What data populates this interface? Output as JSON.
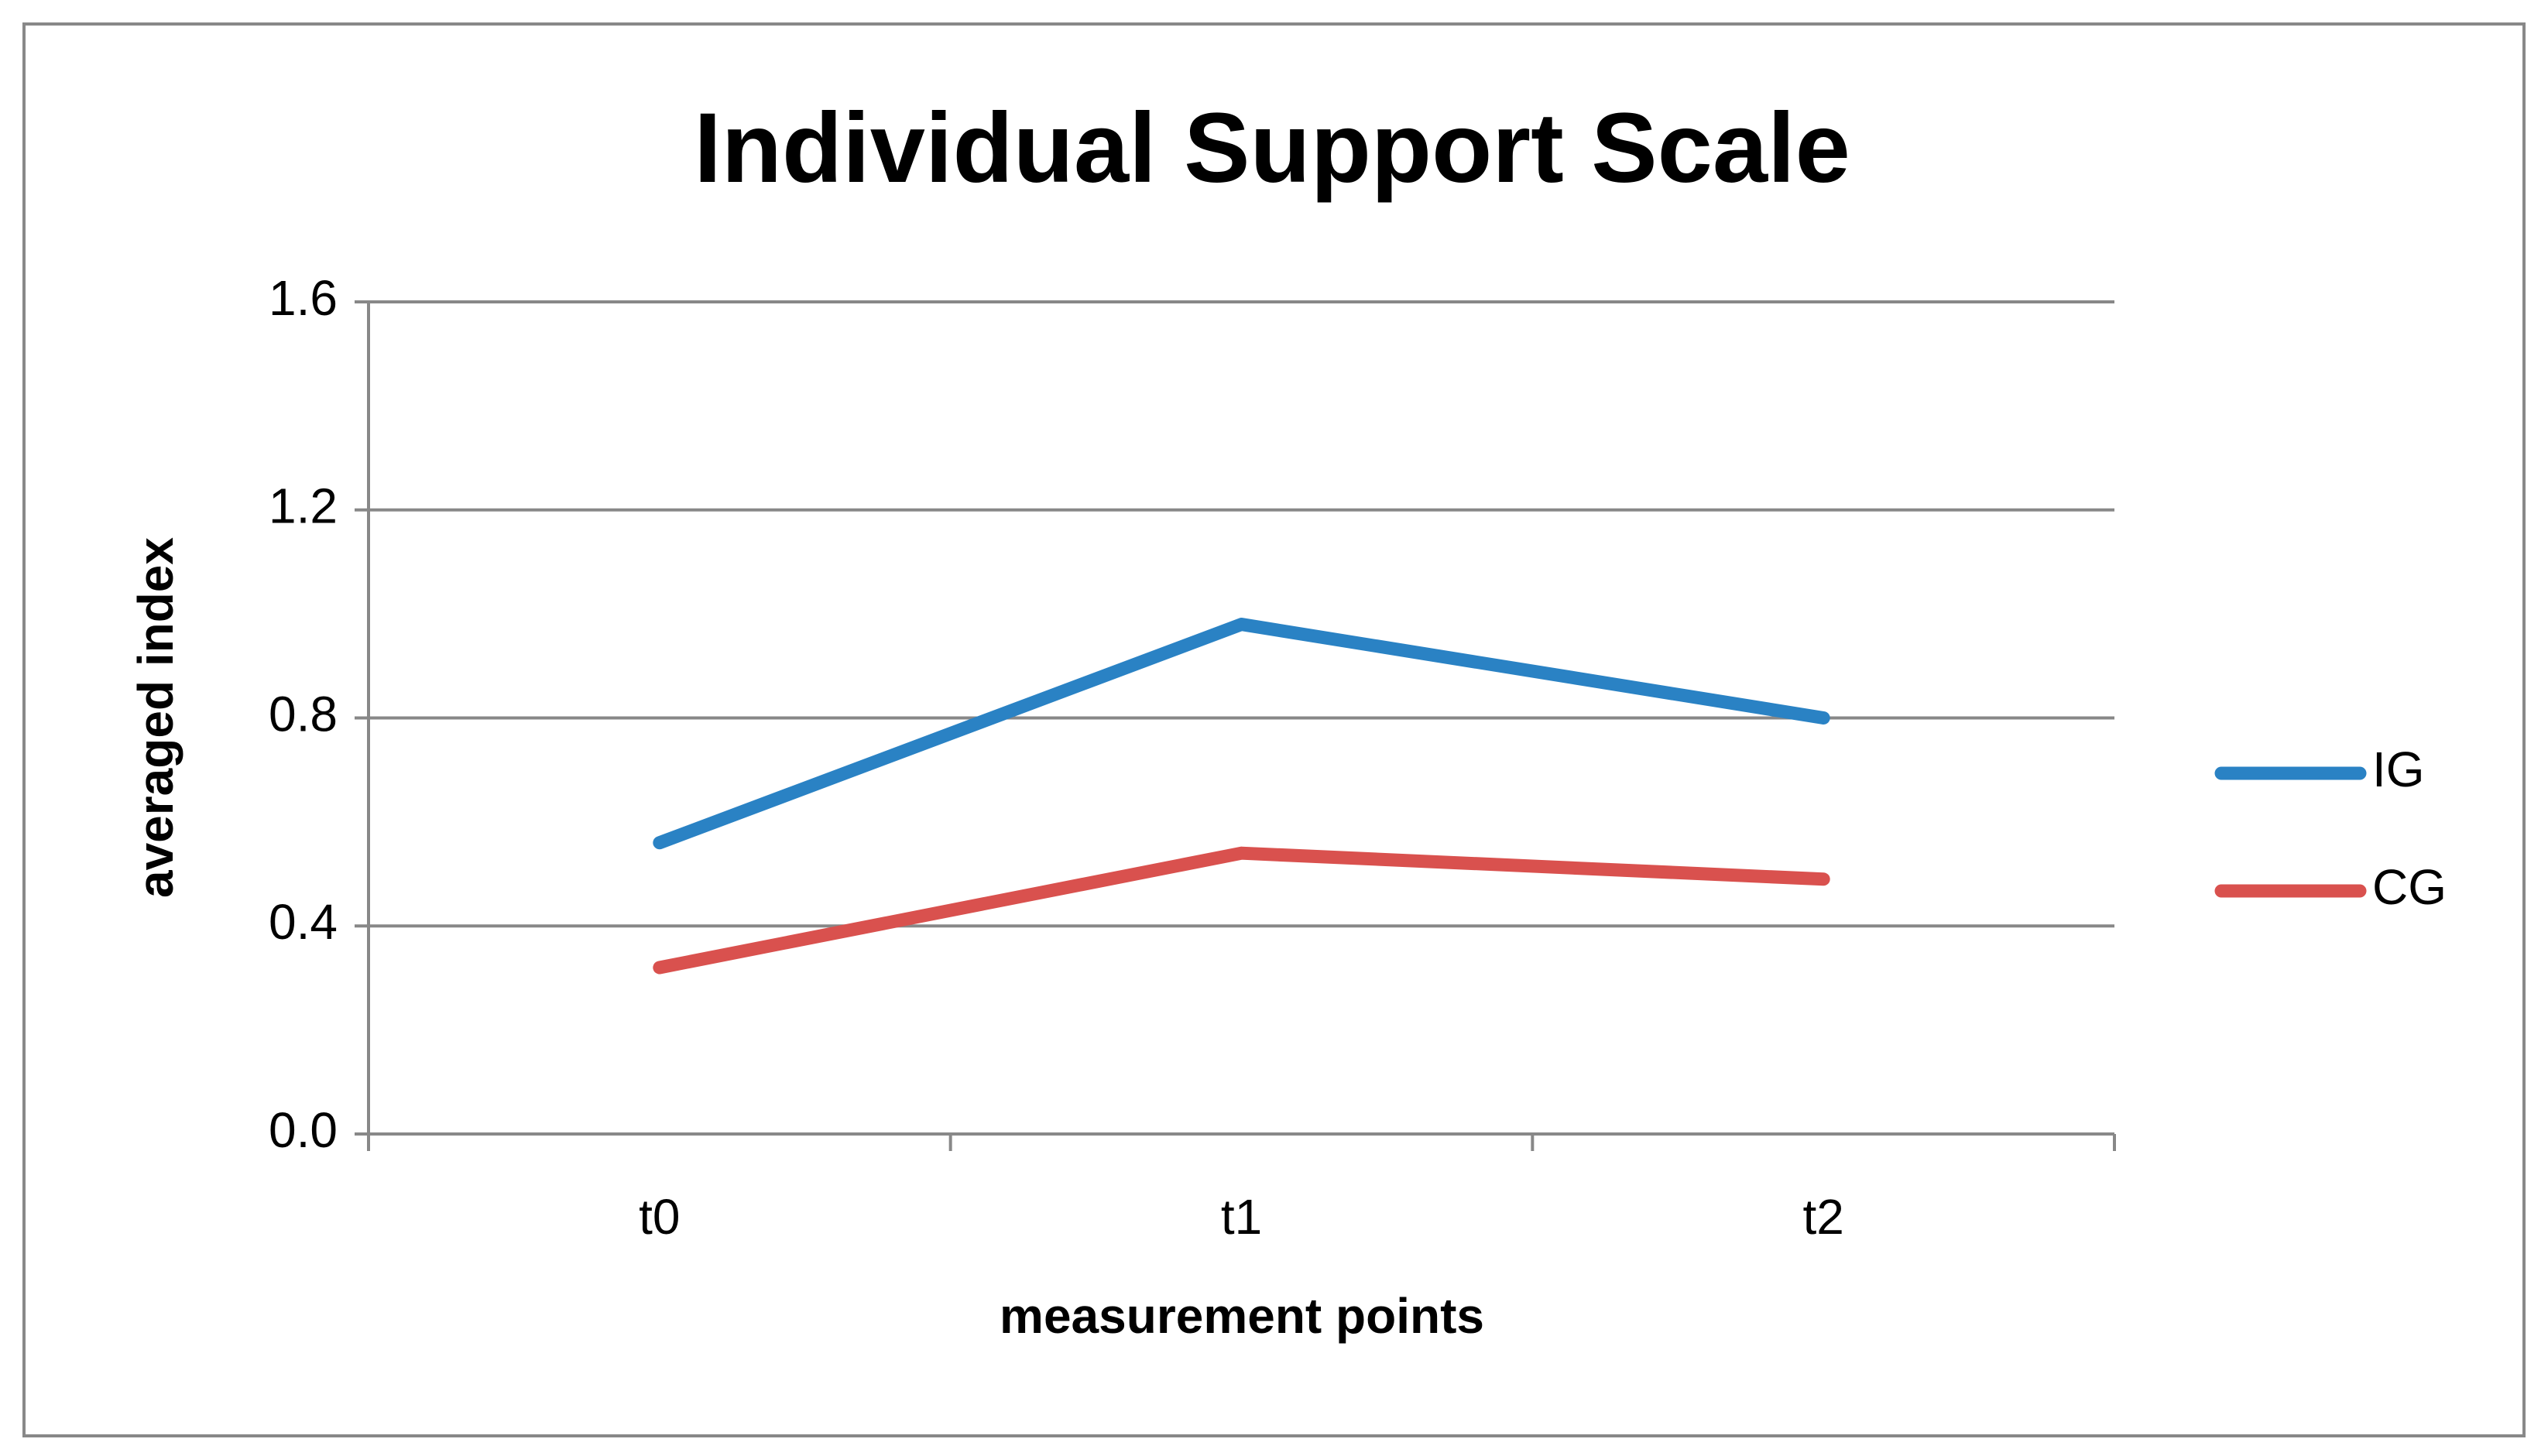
{
  "chart_data": {
    "type": "line",
    "title": "Individual Support Scale",
    "x_label": "measurement points",
    "y_label": "averaged index",
    "categories": [
      "t0",
      "t1",
      "t2"
    ],
    "series": [
      {
        "name": "IG",
        "color": "#2a82c4",
        "values": [
          0.56,
          0.98,
          0.8
        ]
      },
      {
        "name": "CG",
        "color": "#d9514e",
        "values": [
          0.32,
          0.54,
          0.49
        ]
      }
    ],
    "ylim": [
      0,
      1.6
    ],
    "yticks": [
      {
        "value": 0,
        "label": "0.0"
      },
      0.4,
      0.8,
      1.2,
      1.6
    ],
    "grid": true,
    "legend": "right"
  }
}
